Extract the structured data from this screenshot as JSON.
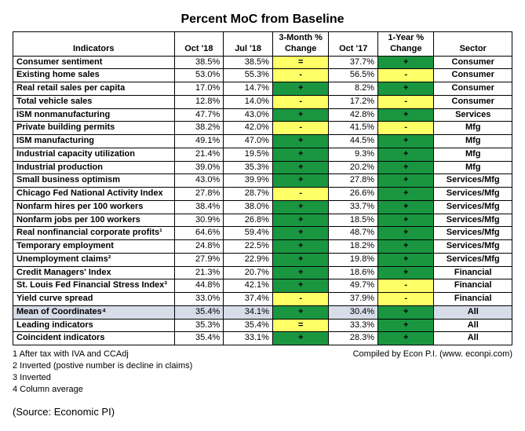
{
  "title": "Percent MoC from Baseline",
  "columns": [
    "Indicators",
    "Oct '18",
    "Jul '18",
    "3-Month % Change",
    "Oct '17",
    "1-Year % Change",
    "Sector"
  ],
  "colors": {
    "green": "#1a9641",
    "yellow": "#ffff66",
    "rowHighlight": "#d6dce8",
    "border": "#000000",
    "white": "#ffffff"
  },
  "rows": [
    {
      "ind": "Consumer sentiment",
      "oct18": "38.5%",
      "jul18": "38.5%",
      "chg3": {
        "sym": "=",
        "bg": "yellow"
      },
      "oct17": "37.7%",
      "chg1": {
        "sym": "+",
        "bg": "green"
      },
      "sector": "Consumer",
      "hl": false
    },
    {
      "ind": "Existing home sales",
      "oct18": "53.0%",
      "jul18": "55.3%",
      "chg3": {
        "sym": "-",
        "bg": "yellow"
      },
      "oct17": "56.5%",
      "chg1": {
        "sym": "-",
        "bg": "yellow"
      },
      "sector": "Consumer",
      "hl": false
    },
    {
      "ind": "Real retail sales per capita",
      "oct18": "17.0%",
      "jul18": "14.7%",
      "chg3": {
        "sym": "+",
        "bg": "green"
      },
      "oct17": "8.2%",
      "chg1": {
        "sym": "+",
        "bg": "green"
      },
      "sector": "Consumer",
      "hl": false
    },
    {
      "ind": "Total vehicle sales",
      "oct18": "12.8%",
      "jul18": "14.0%",
      "chg3": {
        "sym": "-",
        "bg": "yellow"
      },
      "oct17": "17.2%",
      "chg1": {
        "sym": "-",
        "bg": "yellow"
      },
      "sector": "Consumer",
      "hl": false
    },
    {
      "ind": "ISM nonmanufacturing",
      "oct18": "47.7%",
      "jul18": "43.0%",
      "chg3": {
        "sym": "+",
        "bg": "green"
      },
      "oct17": "42.8%",
      "chg1": {
        "sym": "+",
        "bg": "green"
      },
      "sector": "Services",
      "hl": false
    },
    {
      "ind": "Private building permits",
      "oct18": "38.2%",
      "jul18": "42.0%",
      "chg3": {
        "sym": "-",
        "bg": "yellow"
      },
      "oct17": "41.5%",
      "chg1": {
        "sym": "-",
        "bg": "yellow"
      },
      "sector": "Mfg",
      "hl": false
    },
    {
      "ind": "ISM manufacturing",
      "oct18": "49.1%",
      "jul18": "47.0%",
      "chg3": {
        "sym": "+",
        "bg": "green"
      },
      "oct17": "44.5%",
      "chg1": {
        "sym": "+",
        "bg": "green"
      },
      "sector": "Mfg",
      "hl": false
    },
    {
      "ind": "Industrial capacity utilization",
      "oct18": "21.4%",
      "jul18": "19.5%",
      "chg3": {
        "sym": "+",
        "bg": "green"
      },
      "oct17": "9.3%",
      "chg1": {
        "sym": "+",
        "bg": "green"
      },
      "sector": "Mfg",
      "hl": false
    },
    {
      "ind": "Industrial production",
      "oct18": "39.0%",
      "jul18": "35.3%",
      "chg3": {
        "sym": "+",
        "bg": "green"
      },
      "oct17": "20.2%",
      "chg1": {
        "sym": "+",
        "bg": "green"
      },
      "sector": "Mfg",
      "hl": false
    },
    {
      "ind": "Small business optimism",
      "oct18": "43.0%",
      "jul18": "39.9%",
      "chg3": {
        "sym": "+",
        "bg": "green"
      },
      "oct17": "27.8%",
      "chg1": {
        "sym": "+",
        "bg": "green"
      },
      "sector": "Services/Mfg",
      "hl": false
    },
    {
      "ind": "Chicago Fed National Activity Index",
      "oct18": "27.8%",
      "jul18": "28.7%",
      "chg3": {
        "sym": "-",
        "bg": "yellow"
      },
      "oct17": "26.6%",
      "chg1": {
        "sym": "+",
        "bg": "green"
      },
      "sector": "Services/Mfg",
      "hl": false
    },
    {
      "ind": "Nonfarm hires per 100 workers",
      "oct18": "38.4%",
      "jul18": "38.0%",
      "chg3": {
        "sym": "+",
        "bg": "green"
      },
      "oct17": "33.7%",
      "chg1": {
        "sym": "+",
        "bg": "green"
      },
      "sector": "Services/Mfg",
      "hl": false
    },
    {
      "ind": "Nonfarm jobs per 100 workers",
      "oct18": "30.9%",
      "jul18": "26.8%",
      "chg3": {
        "sym": "+",
        "bg": "green"
      },
      "oct17": "18.5%",
      "chg1": {
        "sym": "+",
        "bg": "green"
      },
      "sector": "Services/Mfg",
      "hl": false
    },
    {
      "ind": "Real nonfinancial corporate profits¹",
      "oct18": "64.6%",
      "jul18": "59.4%",
      "chg3": {
        "sym": "+",
        "bg": "green"
      },
      "oct17": "48.7%",
      "chg1": {
        "sym": "+",
        "bg": "green"
      },
      "sector": "Services/Mfg",
      "hl": false
    },
    {
      "ind": "Temporary employment",
      "oct18": "24.8%",
      "jul18": "22.5%",
      "chg3": {
        "sym": "+",
        "bg": "green"
      },
      "oct17": "18.2%",
      "chg1": {
        "sym": "+",
        "bg": "green"
      },
      "sector": "Services/Mfg",
      "hl": false
    },
    {
      "ind": "Unemployment claims²",
      "oct18": "27.9%",
      "jul18": "22.9%",
      "chg3": {
        "sym": "+",
        "bg": "green"
      },
      "oct17": "19.8%",
      "chg1": {
        "sym": "+",
        "bg": "green"
      },
      "sector": "Services/Mfg",
      "hl": false
    },
    {
      "ind": "Credit Managers' Index",
      "oct18": "21.3%",
      "jul18": "20.7%",
      "chg3": {
        "sym": "+",
        "bg": "green"
      },
      "oct17": "18.6%",
      "chg1": {
        "sym": "+",
        "bg": "green"
      },
      "sector": "Financial",
      "hl": false
    },
    {
      "ind": "St. Louis Fed Financial Stress Index³",
      "oct18": "44.8%",
      "jul18": "42.1%",
      "chg3": {
        "sym": "+",
        "bg": "green"
      },
      "oct17": "49.7%",
      "chg1": {
        "sym": "-",
        "bg": "yellow"
      },
      "sector": "Financial",
      "hl": false
    },
    {
      "ind": "Yield curve spread",
      "oct18": "33.0%",
      "jul18": "37.4%",
      "chg3": {
        "sym": "-",
        "bg": "yellow"
      },
      "oct17": "37.9%",
      "chg1": {
        "sym": "-",
        "bg": "yellow"
      },
      "sector": "Financial",
      "hl": false
    },
    {
      "ind": "Mean of Coordinates⁴",
      "oct18": "35.4%",
      "jul18": "34.1%",
      "chg3": {
        "sym": "+",
        "bg": "green"
      },
      "oct17": "30.4%",
      "chg1": {
        "sym": "+",
        "bg": "green"
      },
      "sector": "All",
      "hl": true
    },
    {
      "ind": "Leading indicators",
      "oct18": "35.3%",
      "jul18": "35.4%",
      "chg3": {
        "sym": "=",
        "bg": "yellow"
      },
      "oct17": "33.3%",
      "chg1": {
        "sym": "+",
        "bg": "green"
      },
      "sector": "All",
      "hl": false
    },
    {
      "ind": "Coincident indicators",
      "oct18": "35.4%",
      "jul18": "33.1%",
      "chg3": {
        "sym": "+",
        "bg": "green"
      },
      "oct17": "28.3%",
      "chg1": {
        "sym": "+",
        "bg": "green"
      },
      "sector": "All",
      "hl": false
    }
  ],
  "footnotes": [
    "1 After tax with IVA and CCAdj",
    "2 Inverted (postive number is decline in claims)",
    "3 Inverted",
    "4 Column average"
  ],
  "compiled_by": "Compiled by Econ P.I. (www. econpi.com)",
  "source": "(Source: Economic PI)"
}
